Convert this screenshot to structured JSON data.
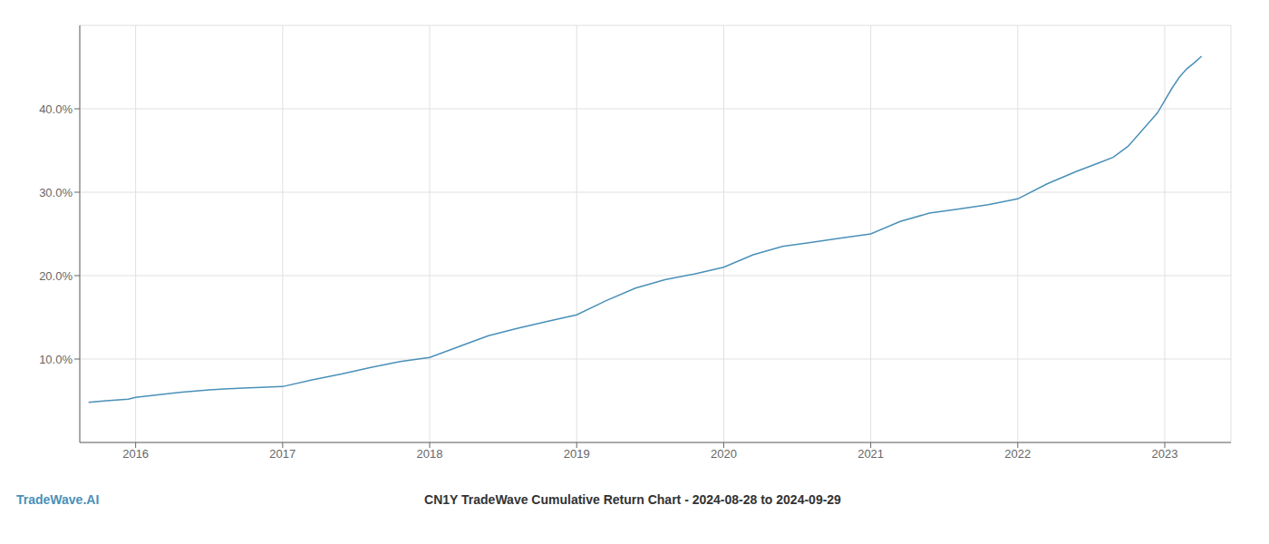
{
  "chart_data": {
    "type": "line",
    "title": "CN1Y TradeWave Cumulative Return Chart - 2024-08-28 to 2024-09-29",
    "annotations": [
      {
        "text": "TradeWave.AI",
        "color": "#4a90b8"
      }
    ],
    "x": [
      2015.68,
      2015.8,
      2015.95,
      2016.0,
      2016.15,
      2016.3,
      2016.5,
      2016.7,
      2016.85,
      2017.0,
      2017.2,
      2017.4,
      2017.6,
      2017.8,
      2018.0,
      2018.2,
      2018.4,
      2018.6,
      2018.8,
      2019.0,
      2019.2,
      2019.4,
      2019.6,
      2019.8,
      2020.0,
      2020.2,
      2020.4,
      2020.6,
      2020.8,
      2021.0,
      2021.2,
      2021.4,
      2021.6,
      2021.8,
      2022.0,
      2022.2,
      2022.4,
      2022.55,
      2022.65,
      2022.75,
      2022.85,
      2022.95,
      2023.0,
      2023.05,
      2023.1,
      2023.15,
      2023.2,
      2023.25
    ],
    "values": [
      4.8,
      5.0,
      5.2,
      5.4,
      5.7,
      6.0,
      6.3,
      6.5,
      6.6,
      6.7,
      7.5,
      8.2,
      9.0,
      9.7,
      10.2,
      11.5,
      12.8,
      13.7,
      14.5,
      15.3,
      17.0,
      18.5,
      19.5,
      20.2,
      21.0,
      22.5,
      23.5,
      24.0,
      24.5,
      25.0,
      26.5,
      27.5,
      28.0,
      28.5,
      29.2,
      31.0,
      32.5,
      33.5,
      34.2,
      35.5,
      37.5,
      39.5,
      41.0,
      42.5,
      43.8,
      44.8,
      45.5,
      46.3
    ],
    "color": "#4a90b8",
    "xlim": [
      2015.62,
      2023.45
    ],
    "xticks": [
      2016,
      2017,
      2018,
      2019,
      2020,
      2021,
      2022,
      2023
    ],
    "ylim": [
      0.0,
      50.0
    ],
    "yticks": [
      {
        "value": 10.0,
        "label": "10.0%"
      },
      {
        "value": 20.0,
        "label": "20.0%"
      },
      {
        "value": 30.0,
        "label": "30.0%"
      },
      {
        "value": 40.0,
        "label": "40.0%"
      }
    ],
    "grid": true
  }
}
